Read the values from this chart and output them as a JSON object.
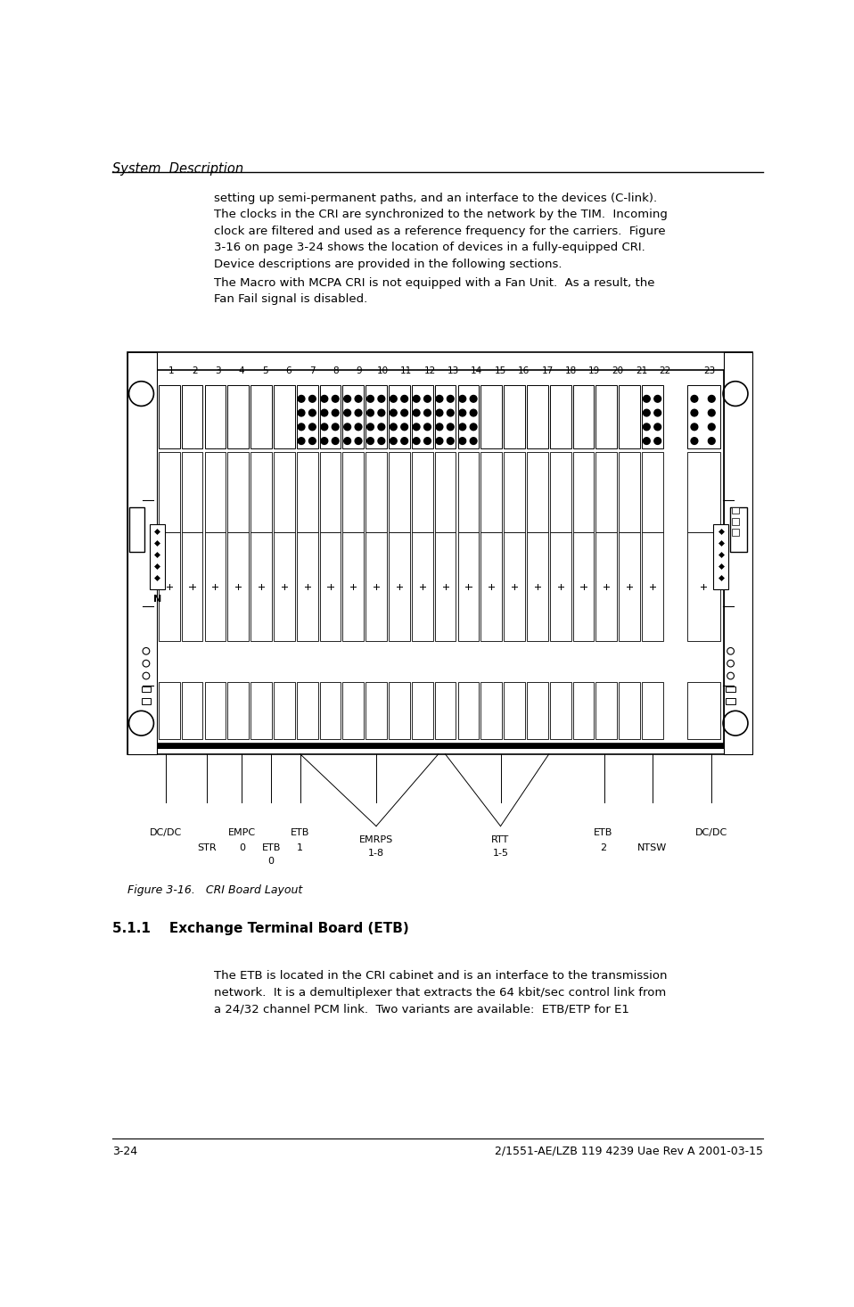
{
  "header_title": "System  Description",
  "body_text_1": "setting up semi-permanent paths, and an interface to the devices (C-link).\nThe clocks in the CRI are synchronized to the network by the TIM.  Incoming\nclock are filtered and used as a reference frequency for the carriers.  Figure\n3-16 on page 3-24 shows the location of devices in a fully-equipped CRI.\nDevice descriptions are provided in the following sections.",
  "body_text_2": "The Macro with MCPA CRI is not equipped with a Fan Unit.  As a result, the\nFan Fail signal is disabled.",
  "figure_caption": "Figure 3-16.   CRI Board Layout",
  "section_title": "5.1.1    Exchange Terminal Board (ETB)",
  "section_text": "The ETB is located in the CRI cabinet and is an interface to the transmission\nnetwork.  It is a demultiplexer that extracts the 64 kbit/sec control link from\na 24/32 channel PCM link.  Two variants are available:  ETB/ETP for E1",
  "footer_left": "3-24",
  "footer_right": "2/1551-AE/LZB 119 4239 Uae Rev A 2001-03-15",
  "bg_color": "#ffffff",
  "text_color": "#000000"
}
